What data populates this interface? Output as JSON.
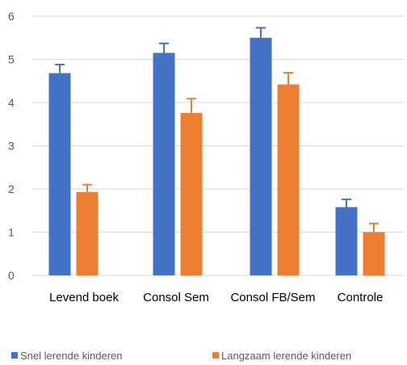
{
  "chart_data": {
    "type": "bar",
    "categories": [
      "Levend boek",
      "Consol Sem",
      "Consol FB/Sem",
      "Controle"
    ],
    "series": [
      {
        "name": "Snel lerende kinderen",
        "values": [
          4.68,
          5.15,
          5.5,
          1.58
        ],
        "errors": [
          0.2,
          0.22,
          0.23,
          0.18
        ],
        "color": "#4472C4"
      },
      {
        "name": "Langzaam lerende kinderen",
        "values": [
          1.93,
          3.76,
          4.42,
          1.0
        ],
        "errors": [
          0.17,
          0.33,
          0.27,
          0.2
        ],
        "color": "#ED7D31"
      }
    ],
    "yticks": [
      "0",
      "1",
      "2",
      "3",
      "4",
      "5",
      "6"
    ],
    "ylim": [
      0,
      6
    ],
    "grid": true,
    "legend_position": "bottom",
    "title": "",
    "xlabel": "",
    "ylabel": ""
  }
}
